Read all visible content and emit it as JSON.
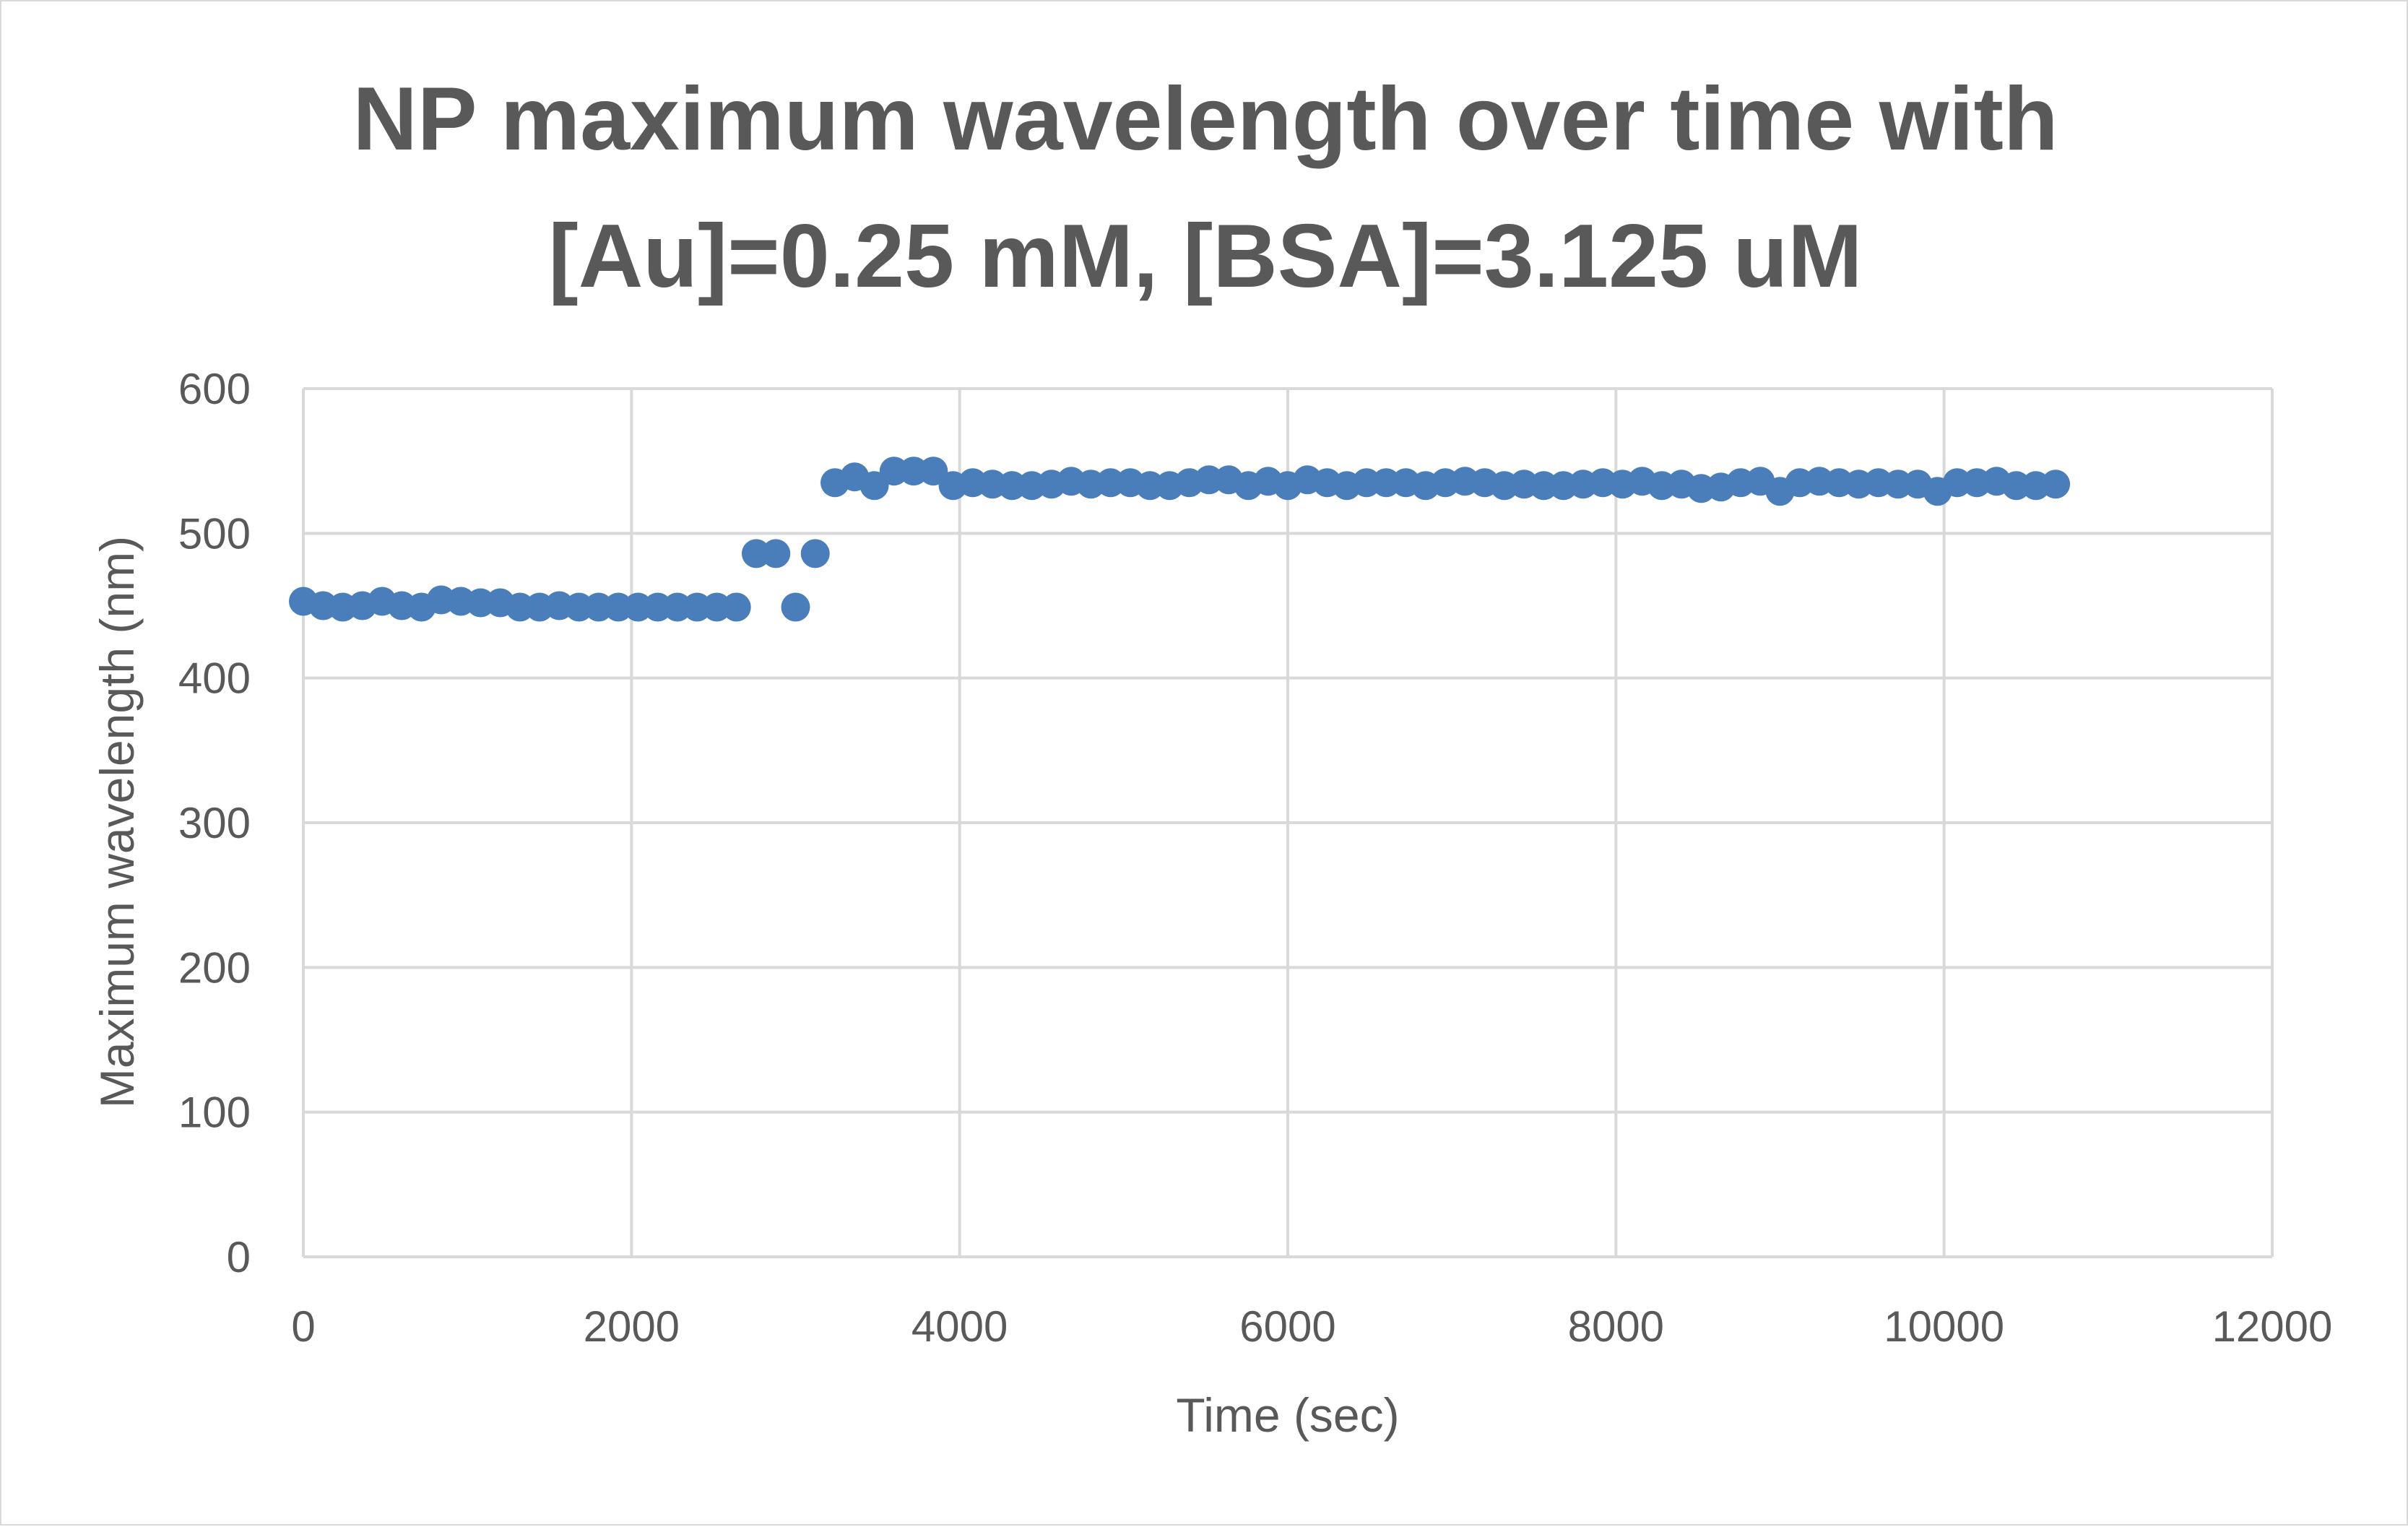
{
  "chart_data": {
    "type": "scatter",
    "title_lines": [
      "NP maximum wavelength over time with",
      "[Au]=0.25 mM, [BSA]=3.125 uM"
    ],
    "xlabel": "Time (sec)",
    "ylabel": "Maximum wavelength (nm)",
    "xlim": [
      0,
      12000
    ],
    "ylim": [
      0,
      600
    ],
    "xticks": [
      0,
      2000,
      4000,
      6000,
      8000,
      10000,
      12000
    ],
    "yticks": [
      0,
      100,
      200,
      300,
      400,
      500,
      600
    ],
    "grid": true,
    "legend": "none",
    "marker_color": "#4a7ebb",
    "series": [
      {
        "x": [
          0,
          120,
          240,
          360,
          480,
          600,
          720,
          840,
          960,
          1080,
          1200,
          1320,
          1440,
          1560,
          1680,
          1800,
          1920,
          2040,
          2160,
          2280,
          2400,
          2520,
          2640,
          2760,
          2880,
          3000,
          3120,
          3240,
          3360,
          3480,
          3600,
          3720,
          3840,
          3960,
          4080,
          4200,
          4320,
          4440,
          4560,
          4680,
          4800,
          4920,
          5040,
          5160,
          5280,
          5400,
          5520,
          5640,
          5760,
          5880,
          6000,
          6120,
          6240,
          6360,
          6480,
          6600,
          6720,
          6840,
          6960,
          7080,
          7200,
          7320,
          7440,
          7560,
          7680,
          7800,
          7920,
          8040,
          8160,
          8280,
          8400,
          8520,
          8640,
          8760,
          8880,
          9000,
          9120,
          9240,
          9360,
          9480,
          9600,
          9720,
          9840,
          9960,
          10080,
          10200,
          10320,
          10440,
          10560,
          10680
        ],
        "y": [
          453,
          450,
          449,
          450,
          453,
          450,
          449,
          454,
          453,
          452,
          452,
          449,
          449,
          450,
          449,
          449,
          449,
          449,
          449,
          449,
          449,
          449,
          449,
          486,
          486,
          449,
          486,
          535,
          539,
          533,
          543,
          543,
          543,
          533,
          535,
          534,
          533,
          533,
          534,
          536,
          534,
          535,
          535,
          533,
          533,
          535,
          537,
          537,
          533,
          536,
          533,
          537,
          535,
          533,
          535,
          535,
          535,
          533,
          535,
          536,
          535,
          533,
          534,
          533,
          533,
          534,
          535,
          534,
          536,
          533,
          534,
          531,
          532,
          535,
          536,
          529,
          535,
          536,
          535,
          534,
          535,
          534,
          534,
          529,
          535,
          535,
          536,
          533,
          533,
          534
        ]
      }
    ]
  }
}
